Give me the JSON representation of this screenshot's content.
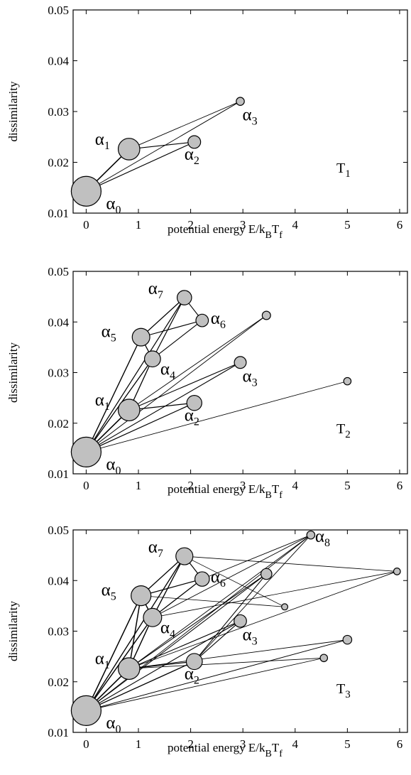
{
  "chart_data": [
    {
      "type": "scatter",
      "panel_label": "T",
      "panel_sub": "1",
      "xlabel_main": "potential energy E/k",
      "xlabel_sub1": "B",
      "xlabel_T": "T",
      "xlabel_sub2": "f",
      "ylabel": "dissimilarity",
      "xlim": [
        -0.25,
        6.15
      ],
      "ylim": [
        0.01,
        0.05
      ],
      "xticks": [
        "0",
        "1",
        "2",
        "3",
        "4",
        "5",
        "6"
      ],
      "xtick_values": [
        0,
        1,
        2,
        3,
        4,
        5,
        6
      ],
      "yticks": [
        "0.01",
        "0.02",
        "0.03",
        "0.04",
        "0.05"
      ],
      "ytick_values": [
        0.01,
        0.02,
        0.03,
        0.04,
        0.05
      ],
      "nodes": [
        {
          "id": "a0",
          "greek": "α",
          "sub": "0",
          "x": 0.0,
          "y": 0.0143,
          "size": 1.0
        },
        {
          "id": "a1",
          "greek": "α",
          "sub": "1",
          "x": 0.82,
          "y": 0.0226,
          "size": 0.68
        },
        {
          "id": "a2",
          "greek": "α",
          "sub": "2",
          "x": 2.07,
          "y": 0.024,
          "size": 0.33
        },
        {
          "id": "a3",
          "greek": "α",
          "sub": "3",
          "x": 2.95,
          "y": 0.032,
          "size": 0.15
        }
      ],
      "edges": [
        [
          "a0",
          "a1"
        ],
        [
          "a0",
          "a2"
        ],
        [
          "a0",
          "a3"
        ],
        [
          "a1",
          "a2"
        ],
        [
          "a1",
          "a3"
        ]
      ]
    },
    {
      "type": "scatter",
      "panel_label": "T",
      "panel_sub": "2",
      "xlabel_main": "potential energy E/k",
      "xlabel_sub1": "B",
      "xlabel_T": "T",
      "xlabel_sub2": "f",
      "ylabel": "dissimilarity",
      "xlim": [
        -0.25,
        6.15
      ],
      "ylim": [
        0.01,
        0.05
      ],
      "xticks": [
        "0",
        "1",
        "2",
        "3",
        "4",
        "5",
        "6"
      ],
      "xtick_values": [
        0,
        1,
        2,
        3,
        4,
        5,
        6
      ],
      "yticks": [
        "0.01",
        "0.02",
        "0.03",
        "0.04",
        "0.05"
      ],
      "ytick_values": [
        0.01,
        0.02,
        0.03,
        0.04,
        0.05
      ],
      "nodes": [
        {
          "id": "a0",
          "greek": "α",
          "sub": "0",
          "x": 0.0,
          "y": 0.0143,
          "size": 1.0
        },
        {
          "id": "a1",
          "greek": "α",
          "sub": "1",
          "x": 0.82,
          "y": 0.0226,
          "size": 0.68
        },
        {
          "id": "a2",
          "greek": "α",
          "sub": "2",
          "x": 2.07,
          "y": 0.024,
          "size": 0.42
        },
        {
          "id": "a3",
          "greek": "α",
          "sub": "3",
          "x": 2.95,
          "y": 0.032,
          "size": 0.3
        },
        {
          "id": "a4",
          "greek": "α",
          "sub": "4",
          "x": 1.27,
          "y": 0.0327,
          "size": 0.46
        },
        {
          "id": "a5",
          "greek": "α",
          "sub": "5",
          "x": 1.05,
          "y": 0.037,
          "size": 0.52
        },
        {
          "id": "a6",
          "greek": "α",
          "sub": "6",
          "x": 2.22,
          "y": 0.0403,
          "size": 0.32
        },
        {
          "id": "a7",
          "greek": "α",
          "sub": "7",
          "x": 1.88,
          "y": 0.0448,
          "size": 0.4
        },
        {
          "id": "n1",
          "greek": "",
          "sub": "",
          "x": 3.45,
          "y": 0.0413,
          "size": 0.16
        },
        {
          "id": "n2",
          "greek": "",
          "sub": "",
          "x": 5.0,
          "y": 0.0283,
          "size": 0.12
        }
      ],
      "edges": [
        [
          "a0",
          "a1"
        ],
        [
          "a0",
          "a2"
        ],
        [
          "a0",
          "a3"
        ],
        [
          "a0",
          "a4"
        ],
        [
          "a0",
          "a5"
        ],
        [
          "a0",
          "a7"
        ],
        [
          "a0",
          "n1"
        ],
        [
          "a0",
          "n2"
        ],
        [
          "a1",
          "a2"
        ],
        [
          "a1",
          "a3"
        ],
        [
          "a1",
          "n1"
        ],
        [
          "a1",
          "a4"
        ],
        [
          "a4",
          "a5"
        ],
        [
          "a4",
          "a7"
        ],
        [
          "a5",
          "a7"
        ],
        [
          "a5",
          "a6"
        ],
        [
          "a6",
          "a7"
        ],
        [
          "a4",
          "a6"
        ]
      ]
    },
    {
      "type": "scatter",
      "panel_label": "T",
      "panel_sub": "3",
      "xlabel_main": "potential energy E/k",
      "xlabel_sub1": "B",
      "xlabel_T": "T",
      "xlabel_sub2": "f",
      "ylabel": "dissimilarity",
      "xlim": [
        -0.25,
        6.15
      ],
      "ylim": [
        0.01,
        0.05
      ],
      "xticks": [
        "0",
        "1",
        "2",
        "3",
        "4",
        "5",
        "6"
      ],
      "xtick_values": [
        0,
        1,
        2,
        3,
        4,
        5,
        6
      ],
      "yticks": [
        "0.01",
        "0.02",
        "0.03",
        "0.04",
        "0.05"
      ],
      "ytick_values": [
        0.01,
        0.02,
        0.03,
        0.04,
        0.05
      ],
      "nodes": [
        {
          "id": "a0",
          "greek": "α",
          "sub": "0",
          "x": 0.0,
          "y": 0.0143,
          "size": 1.0
        },
        {
          "id": "a1",
          "greek": "α",
          "sub": "1",
          "x": 0.82,
          "y": 0.0226,
          "size": 0.68
        },
        {
          "id": "a2",
          "greek": "α",
          "sub": "2",
          "x": 2.07,
          "y": 0.024,
          "size": 0.46
        },
        {
          "id": "a3",
          "greek": "α",
          "sub": "3",
          "x": 2.95,
          "y": 0.032,
          "size": 0.32
        },
        {
          "id": "a4",
          "greek": "α",
          "sub": "4",
          "x": 1.27,
          "y": 0.0327,
          "size": 0.55
        },
        {
          "id": "a5",
          "greek": "α",
          "sub": "5",
          "x": 1.05,
          "y": 0.037,
          "size": 0.61
        },
        {
          "id": "a6",
          "greek": "α",
          "sub": "6",
          "x": 2.22,
          "y": 0.0403,
          "size": 0.4
        },
        {
          "id": "a7",
          "greek": "α",
          "sub": "7",
          "x": 1.88,
          "y": 0.0448,
          "size": 0.5
        },
        {
          "id": "a8",
          "greek": "α",
          "sub": "8",
          "x": 4.3,
          "y": 0.049,
          "size": 0.15
        },
        {
          "id": "n1",
          "greek": "",
          "sub": "",
          "x": 3.45,
          "y": 0.0413,
          "size": 0.26
        },
        {
          "id": "n2",
          "greek": "",
          "sub": "",
          "x": 5.95,
          "y": 0.0418,
          "size": 0.1
        },
        {
          "id": "n3",
          "greek": "",
          "sub": "",
          "x": 3.8,
          "y": 0.0348,
          "size": 0.08
        },
        {
          "id": "n4",
          "greek": "",
          "sub": "",
          "x": 5.0,
          "y": 0.0283,
          "size": 0.18
        },
        {
          "id": "n5",
          "greek": "",
          "sub": "",
          "x": 4.55,
          "y": 0.0247,
          "size": 0.12
        }
      ],
      "edges": [
        [
          "a0",
          "a1"
        ],
        [
          "a0",
          "a2"
        ],
        [
          "a0",
          "a3"
        ],
        [
          "a0",
          "a4"
        ],
        [
          "a0",
          "a5"
        ],
        [
          "a0",
          "a7"
        ],
        [
          "a0",
          "a8"
        ],
        [
          "a0",
          "n1"
        ],
        [
          "a0",
          "n4"
        ],
        [
          "a0",
          "n5"
        ],
        [
          "a1",
          "a2"
        ],
        [
          "a1",
          "a3"
        ],
        [
          "a1",
          "a8"
        ],
        [
          "a1",
          "n1"
        ],
        [
          "a1",
          "n2"
        ],
        [
          "a1",
          "n4"
        ],
        [
          "a1",
          "n5"
        ],
        [
          "a1",
          "a4"
        ],
        [
          "a1",
          "a5"
        ],
        [
          "a4",
          "a5"
        ],
        [
          "a4",
          "a7"
        ],
        [
          "a5",
          "a7"
        ],
        [
          "a5",
          "a6"
        ],
        [
          "a6",
          "a7"
        ],
        [
          "a4",
          "a6"
        ],
        [
          "a4",
          "a8"
        ],
        [
          "a4",
          "n2"
        ],
        [
          "a5",
          "n3"
        ],
        [
          "a7",
          "n2"
        ],
        [
          "a7",
          "n3"
        ],
        [
          "a2",
          "a3"
        ],
        [
          "a2",
          "n1"
        ],
        [
          "a6",
          "a8"
        ],
        [
          "a2",
          "a8"
        ]
      ]
    }
  ]
}
